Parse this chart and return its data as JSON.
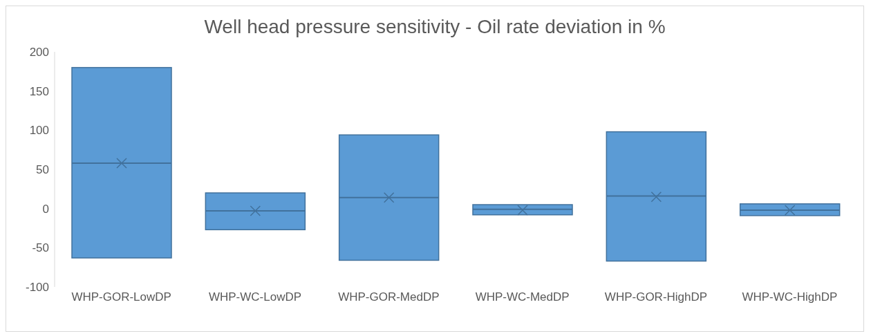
{
  "chart_data": {
    "type": "box",
    "title": "Well head pressure sensitivity - Oil rate deviation in %",
    "categories": [
      "WHP-GOR-LowDP",
      "WHP-WC-LowDP",
      "WHP-GOR-MedDP",
      "WHP-WC-MedDP",
      "WHP-GOR-HighDP",
      "WHP-WC-HighDP"
    ],
    "color": "#5b9bd5",
    "boxes": [
      {
        "low": -63,
        "q1": -63,
        "median": 58,
        "q3": 180,
        "high": 180,
        "mean": 58
      },
      {
        "low": -27,
        "q1": -27,
        "median": -3,
        "q3": 20,
        "high": 20,
        "mean": -3
      },
      {
        "low": -66,
        "q1": -66,
        "median": 14,
        "q3": 94,
        "high": 94,
        "mean": 14
      },
      {
        "low": -8,
        "q1": -8,
        "median": -1,
        "q3": 5,
        "high": 5,
        "mean": -2
      },
      {
        "low": -67,
        "q1": -67,
        "median": 16,
        "q3": 98,
        "high": 98,
        "mean": 15
      },
      {
        "low": -9,
        "q1": -9,
        "median": -2,
        "q3": 6,
        "high": 6,
        "mean": -2
      }
    ],
    "ylim": [
      -100,
      200
    ],
    "yticks": [
      -100,
      -50,
      0,
      50,
      100,
      150,
      200
    ],
    "grid": false,
    "legend": false
  }
}
